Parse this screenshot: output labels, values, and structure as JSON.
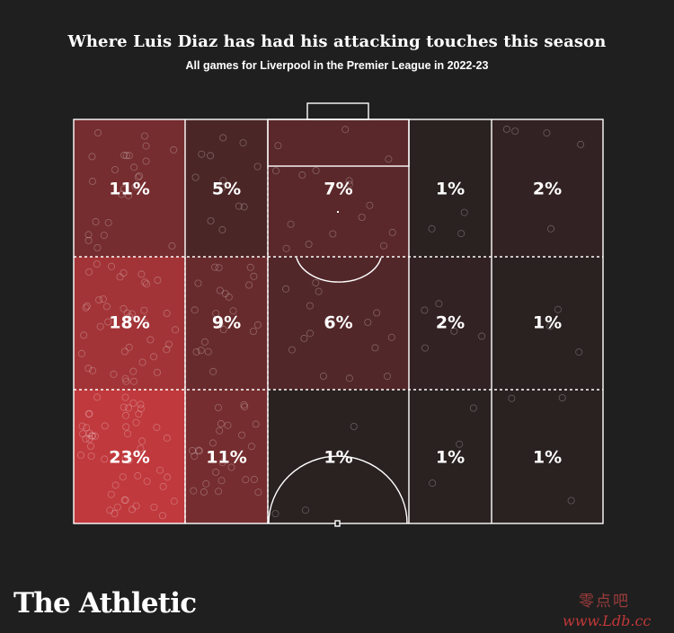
{
  "title": "Where Luis Diaz has had his attacking touches this season",
  "subtitle": "All games for Liverpool in the Premier League in 2022-23",
  "brand": "The Athletic",
  "watermark": {
    "cn": "零点吧",
    "url": "www.Ldb.cc"
  },
  "colors": {
    "background": "#1f1f1f",
    "zone_max": "#c0393d",
    "zone_min": "#1f1f1f",
    "lines": "#ffffff"
  },
  "chart_data": {
    "type": "heatmap",
    "title": "Where Luis Diaz has had his attacking touches this season",
    "subtitle": "All games for Liverpool in the Premier League in 2022-23",
    "columns": 5,
    "rows": 3,
    "row_labels": [
      "top",
      "middle",
      "bottom"
    ],
    "zones": [
      [
        {
          "label": "11%",
          "value": 11
        },
        {
          "label": "5%",
          "value": 5
        },
        {
          "label": "7%",
          "value": 7
        },
        {
          "label": "1%",
          "value": 1
        },
        {
          "label": "2%",
          "value": 2
        }
      ],
      [
        {
          "label": "18%",
          "value": 18
        },
        {
          "label": "9%",
          "value": 9
        },
        {
          "label": "6%",
          "value": 6
        },
        {
          "label": "2%",
          "value": 2
        },
        {
          "label": "1%",
          "value": 1
        }
      ],
      [
        {
          "label": "23%",
          "value": 23
        },
        {
          "label": "11%",
          "value": 11
        },
        {
          "label": "1%",
          "value": 1
        },
        {
          "label": "1%",
          "value": 1
        },
        {
          "label": "1%",
          "value": 1
        }
      ]
    ],
    "color_scale": {
      "min": 0,
      "max": 23
    }
  }
}
